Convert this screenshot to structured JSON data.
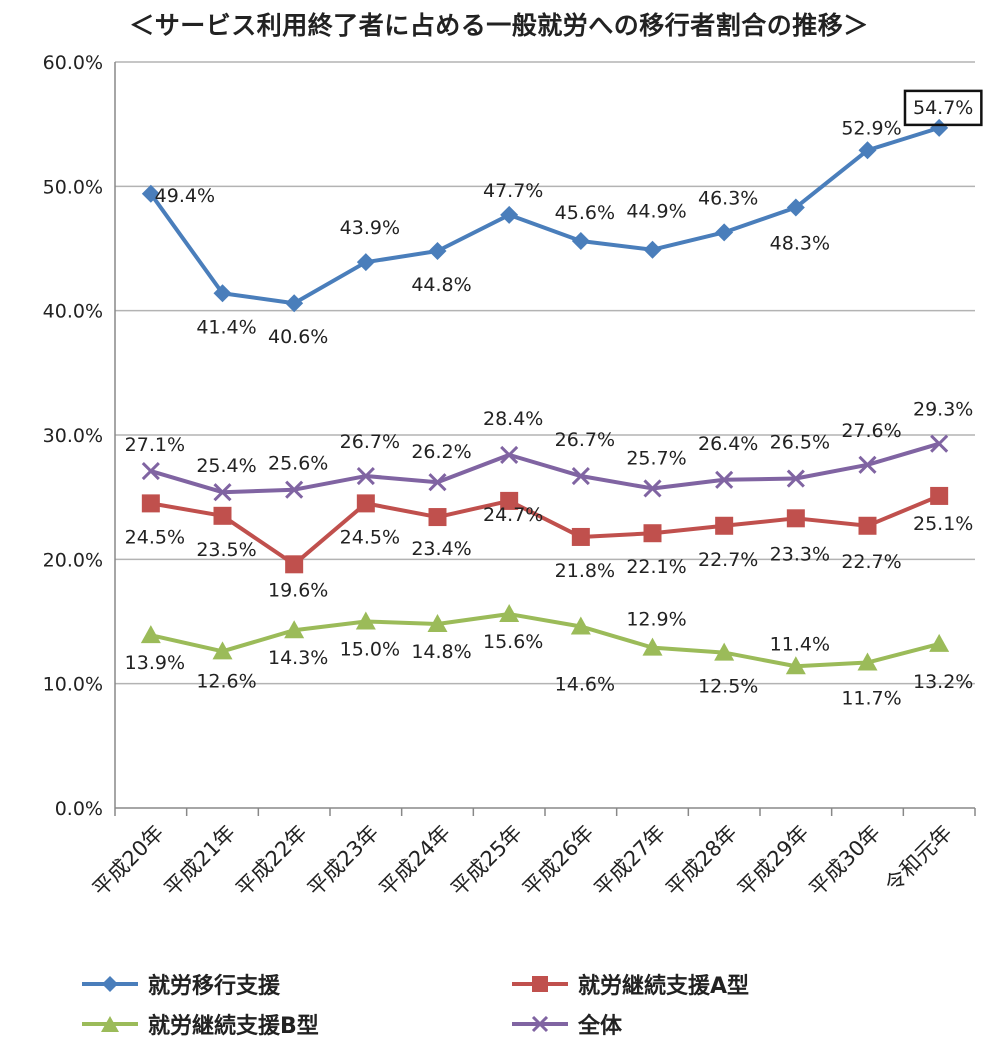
{
  "chart_data": {
    "type": "line",
    "title": "＜サービス利用終了者に占める一般就労への移行者割合の推移＞",
    "xlabel": "",
    "ylabel": "",
    "categories": [
      "平成20年",
      "平成21年",
      "平成22年",
      "平成23年",
      "平成24年",
      "平成25年",
      "平成26年",
      "平成27年",
      "平成28年",
      "平成29年",
      "平成30年",
      "令和元年"
    ],
    "ylim": [
      0,
      60
    ],
    "yticks": [
      "0.0%",
      "10.0%",
      "20.0%",
      "30.0%",
      "40.0%",
      "50.0%",
      "60.0%"
    ],
    "grid": true,
    "legend_position": "bottom",
    "series": [
      {
        "name": "就労移行支援",
        "color": "#4a7ebb",
        "marker": "diamond",
        "values": [
          49.4,
          41.4,
          40.6,
          43.9,
          44.8,
          47.7,
          45.6,
          44.9,
          46.3,
          48.3,
          52.9,
          54.7
        ],
        "labels": [
          "49.4%",
          "41.4%",
          "40.6%",
          "43.9%",
          "44.8%",
          "47.7%",
          "45.6%",
          "44.9%",
          "46.3%",
          "48.3%",
          "52.9%",
          "54.7%"
        ],
        "highlight_last": true
      },
      {
        "name": "就労継続支援A型",
        "color": "#c0504d",
        "marker": "square",
        "values": [
          24.5,
          23.5,
          19.6,
          24.5,
          23.4,
          24.7,
          21.8,
          22.1,
          22.7,
          23.3,
          22.7,
          25.1
        ],
        "labels": [
          "24.5%",
          "23.5%",
          "19.6%",
          "24.5%",
          "23.4%",
          "24.7%",
          "21.8%",
          "22.1%",
          "22.7%",
          "23.3%",
          "22.7%",
          "25.1%"
        ]
      },
      {
        "name": "就労継続支援B型",
        "color": "#9bbb59",
        "marker": "triangle",
        "values": [
          13.9,
          12.6,
          14.3,
          15.0,
          14.8,
          15.6,
          14.6,
          12.9,
          12.5,
          11.4,
          11.7,
          13.2
        ],
        "labels": [
          "13.9%",
          "12.6%",
          "14.3%",
          "15.0%",
          "14.8%",
          "15.6%",
          "14.6%",
          "12.9%",
          "12.5%",
          "11.4%",
          "11.7%",
          "13.2%"
        ]
      },
      {
        "name": "全体",
        "color": "#8064a2",
        "marker": "x",
        "values": [
          27.1,
          25.4,
          25.6,
          26.7,
          26.2,
          28.4,
          26.7,
          25.7,
          26.4,
          26.5,
          27.6,
          29.3
        ],
        "labels": [
          "27.1%",
          "25.4%",
          "25.6%",
          "26.7%",
          "26.2%",
          "28.4%",
          "26.7%",
          "25.7%",
          "26.4%",
          "26.5%",
          "27.6%",
          "29.3%"
        ]
      }
    ]
  }
}
